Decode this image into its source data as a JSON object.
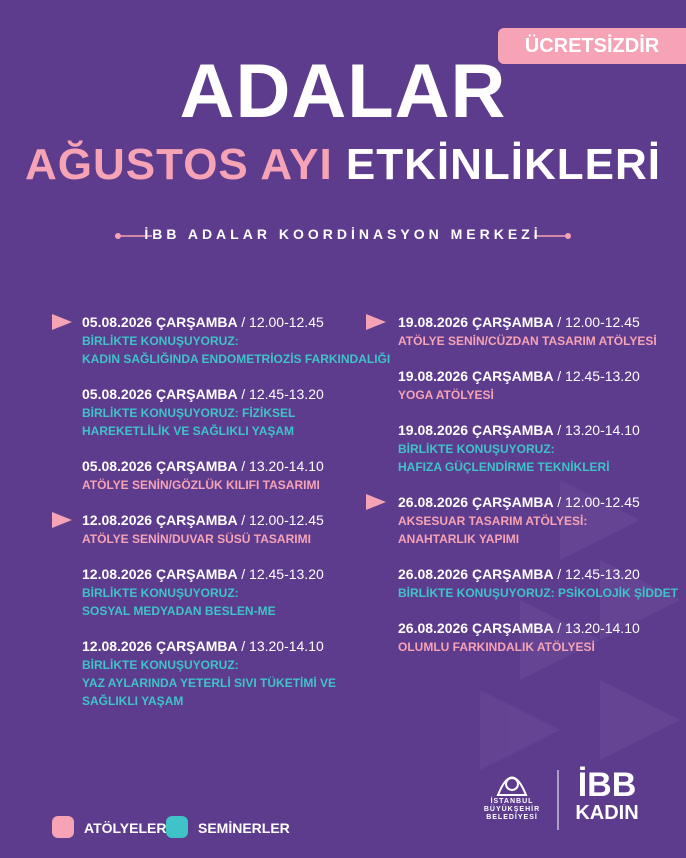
{
  "badge": "ÜCRETSİZDİR",
  "title": "ADALAR",
  "subtitle": {
    "highlight": "AĞUSTOS AYI",
    "rest": "ETKİNLİKLERİ"
  },
  "organizer": "İBB ADALAR KOORDİNASYON MERKEZİ",
  "colors": {
    "background": "#5d3b8d",
    "pink": "#f6a3b5",
    "teal": "#3fc3c8"
  },
  "columns": [
    [
      {
        "date": "05.08.2026 ÇARŞAMBA",
        "time": "/ 12.00-12.45",
        "color": "teal",
        "lines": [
          "BİRLİKTE KONUŞUYORUZ:",
          "KADIN SAĞLIĞINDA ENDOMETRİOZİS FARKINDALIĞI"
        ]
      },
      {
        "date": "05.08.2026 ÇARŞAMBA",
        "time": "/ 12.45-13.20",
        "color": "teal",
        "lines": [
          "BİRLİKTE KONUŞUYORUZ: FİZİKSEL",
          "HAREKETLİLİK VE SAĞLIKLI YAŞAM"
        ]
      },
      {
        "date": "05.08.2026 ÇARŞAMBA",
        "time": "/ 13.20-14.10",
        "color": "pink",
        "lines": [
          "ATÖLYE SENİN/GÖZLÜK KILIFI TASARIMI"
        ]
      },
      {
        "date": "12.08.2026 ÇARŞAMBA",
        "time": "/ 12.00-12.45",
        "color": "pink",
        "lines": [
          "ATÖLYE SENİN/DUVAR SÜSÜ TASARIMI"
        ]
      },
      {
        "date": "12.08.2026 ÇARŞAMBA",
        "time": "/ 12.45-13.20",
        "color": "teal",
        "lines": [
          "BİRLİKTE KONUŞUYORUZ:",
          "SOSYAL MEDYADAN BESLEN-ME"
        ]
      },
      {
        "date": "12.08.2026 ÇARŞAMBA",
        "time": "/ 13.20-14.10",
        "color": "teal",
        "lines": [
          "BİRLİKTE KONUŞUYORUZ:",
          "YAZ AYLARINDA YETERLİ SIVI TÜKETİMİ VE",
          "SAĞLIKLI YAŞAM"
        ]
      }
    ],
    [
      {
        "date": "19.08.2026 ÇARŞAMBA",
        "time": "/ 12.00-12.45",
        "color": "pink",
        "lines": [
          "ATÖLYE SENİN/CÜZDAN TASARIM ATÖLYESİ"
        ]
      },
      {
        "date": "19.08.2026 ÇARŞAMBA",
        "time": "/ 12.45-13.20",
        "color": "pink",
        "lines": [
          "YOGA ATÖLYESİ"
        ]
      },
      {
        "date": "19.08.2026 ÇARŞAMBA",
        "time": "/ 13.20-14.10",
        "color": "teal",
        "lines": [
          "BİRLİKTE KONUŞUYORUZ:",
          "HAFIZA GÜÇLENDİRME TEKNİKLERİ"
        ]
      },
      {
        "date": "26.08.2026 ÇARŞAMBA",
        "time": "/  12.00-12.45",
        "color": "pink",
        "lines": [
          "AKSESUAR TASARIM ATÖLYESİ:",
          "ANAHTARLIK YAPIMI"
        ]
      },
      {
        "date": "26.08.2026 ÇARŞAMBA",
        "time": "/ 12.45-13.20",
        "color": "teal",
        "lines": [
          "BİRLİKTE KONUŞUYORUZ:  PSİKOLOJİK ŞİDDET"
        ]
      },
      {
        "date": "26.08.2026 ÇARŞAMBA",
        "time": "/ 13.20-14.10",
        "color": "pink",
        "lines": [
          "OLUMLU FARKINDALIK ATÖLYESİ"
        ]
      }
    ]
  ],
  "legend": [
    {
      "label": "ATÖLYELER",
      "color": "pink"
    },
    {
      "label": "SEMİNERLER",
      "color": "teal"
    }
  ],
  "logos": {
    "ibb_lines": [
      "İSTANBUL",
      "BÜYÜKŞEHİR",
      "BELEDİYESİ"
    ],
    "kadin_top": "İBB",
    "kadin_bottom": "KADIN"
  }
}
